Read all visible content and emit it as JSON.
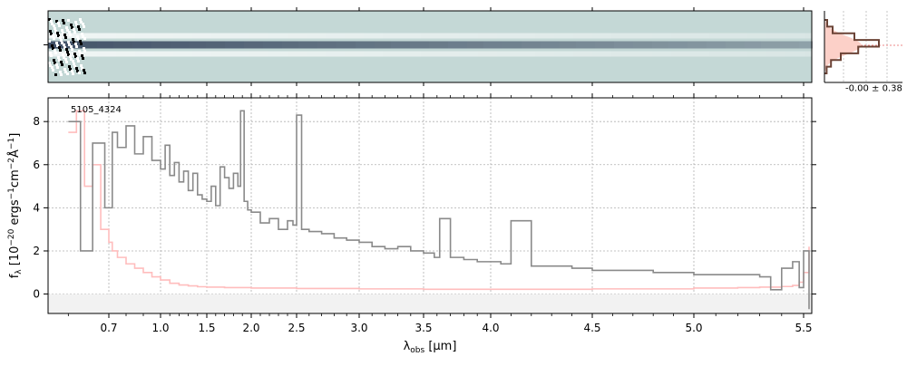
{
  "figure": {
    "object_label": "5105_4324",
    "hist_label": "-0.00 ± 0.38"
  },
  "colors": {
    "spectrum": "#8a8a8a",
    "uncertainty": "#ffbdbd",
    "hist_line": "#6b4336",
    "hist_fill": "#fcd0c8",
    "grid": "#b0b0b0",
    "image_bg": "#c4d8d6",
    "trace_dark": "#0c1a3a"
  },
  "chart_data": {
    "type": "line",
    "xlabel": "λobs [μm]",
    "xlabel_main": "λ",
    "xlabel_sub": "obs",
    "xlabel_unit": " [μm]",
    "ylabel": "fλ [10−20 ergs−1cm−2Å−1]",
    "xscale": "non-linear (spectral pixel grid)",
    "ylim": [
      -0.9,
      9.1
    ],
    "yticks": [
      0,
      2,
      4,
      6,
      8
    ],
    "xticks": [
      0.7,
      1.0,
      1.5,
      2.0,
      2.5,
      3.0,
      3.5,
      4.0,
      4.5,
      5.0,
      5.5
    ],
    "xtick_labels": [
      "0.7",
      "1.0",
      "1.5",
      "2.0",
      "2.5",
      "3.0",
      "3.5",
      "4.0",
      "4.5",
      "5.0",
      "5.5"
    ],
    "grid": true,
    "series": [
      {
        "role": "spectrum",
        "x": [
          0.6,
          0.63,
          0.66,
          0.69,
          0.72,
          0.75,
          0.8,
          0.85,
          0.9,
          0.95,
          1.0,
          1.05,
          1.1,
          1.15,
          1.2,
          1.25,
          1.3,
          1.35,
          1.4,
          1.45,
          1.5,
          1.55,
          1.6,
          1.65,
          1.7,
          1.75,
          1.8,
          1.85,
          1.88,
          1.92,
          1.96,
          2.0,
          2.1,
          2.2,
          2.3,
          2.4,
          2.46,
          2.5,
          2.54,
          2.6,
          2.7,
          2.8,
          2.9,
          3.0,
          3.1,
          3.2,
          3.3,
          3.4,
          3.5,
          3.58,
          3.62,
          3.7,
          3.8,
          3.9,
          4.0,
          4.05,
          4.1,
          4.2,
          4.3,
          4.4,
          4.5,
          4.6,
          4.7,
          4.8,
          4.9,
          5.0,
          5.1,
          5.2,
          5.3,
          5.35,
          5.4,
          5.45,
          5.48,
          5.5,
          5.52
        ],
        "y": [
          8.0,
          2.0,
          7.0,
          4.0,
          7.5,
          6.8,
          7.8,
          6.5,
          7.3,
          6.2,
          5.8,
          6.9,
          5.5,
          6.1,
          5.2,
          5.7,
          4.8,
          5.6,
          4.6,
          4.4,
          4.3,
          5.0,
          4.1,
          5.9,
          5.4,
          4.9,
          5.6,
          5.0,
          8.5,
          4.3,
          3.9,
          3.8,
          3.3,
          3.5,
          3.0,
          3.4,
          3.2,
          8.3,
          3.0,
          2.9,
          2.8,
          2.6,
          2.5,
          2.4,
          2.2,
          2.1,
          2.2,
          2.0,
          1.9,
          1.7,
          3.5,
          1.7,
          1.6,
          1.5,
          1.5,
          1.4,
          3.4,
          1.3,
          1.3,
          1.2,
          1.1,
          1.1,
          1.1,
          1.0,
          1.0,
          0.9,
          0.9,
          0.9,
          0.8,
          0.2,
          1.2,
          1.5,
          0.3,
          2.0,
          -0.7
        ]
      },
      {
        "role": "uncertainty",
        "x": [
          0.6,
          0.62,
          0.64,
          0.66,
          0.68,
          0.7,
          0.72,
          0.75,
          0.8,
          0.85,
          0.9,
          0.95,
          1.0,
          1.1,
          1.2,
          1.3,
          1.4,
          1.5,
          1.7,
          2.0,
          2.5,
          3.0,
          3.5,
          4.0,
          4.5,
          5.0,
          5.2,
          5.3,
          5.4,
          5.45,
          5.48,
          5.5,
          5.52
        ],
        "y": [
          7.5,
          8.5,
          5.0,
          6.0,
          3.0,
          2.4,
          2.0,
          1.7,
          1.4,
          1.2,
          1.0,
          0.8,
          0.65,
          0.5,
          0.42,
          0.38,
          0.34,
          0.32,
          0.3,
          0.28,
          0.26,
          0.24,
          0.22,
          0.22,
          0.24,
          0.28,
          0.3,
          0.32,
          0.35,
          0.4,
          0.55,
          1.0,
          2.2
        ]
      }
    ],
    "histogram": {
      "x_label": "-0.00 ± 0.38",
      "counts": [
        0.05,
        0.15,
        0.55,
        1.0,
        0.62,
        0.3,
        0.12,
        0.04
      ],
      "gaussian_peak": 0.68
    }
  }
}
